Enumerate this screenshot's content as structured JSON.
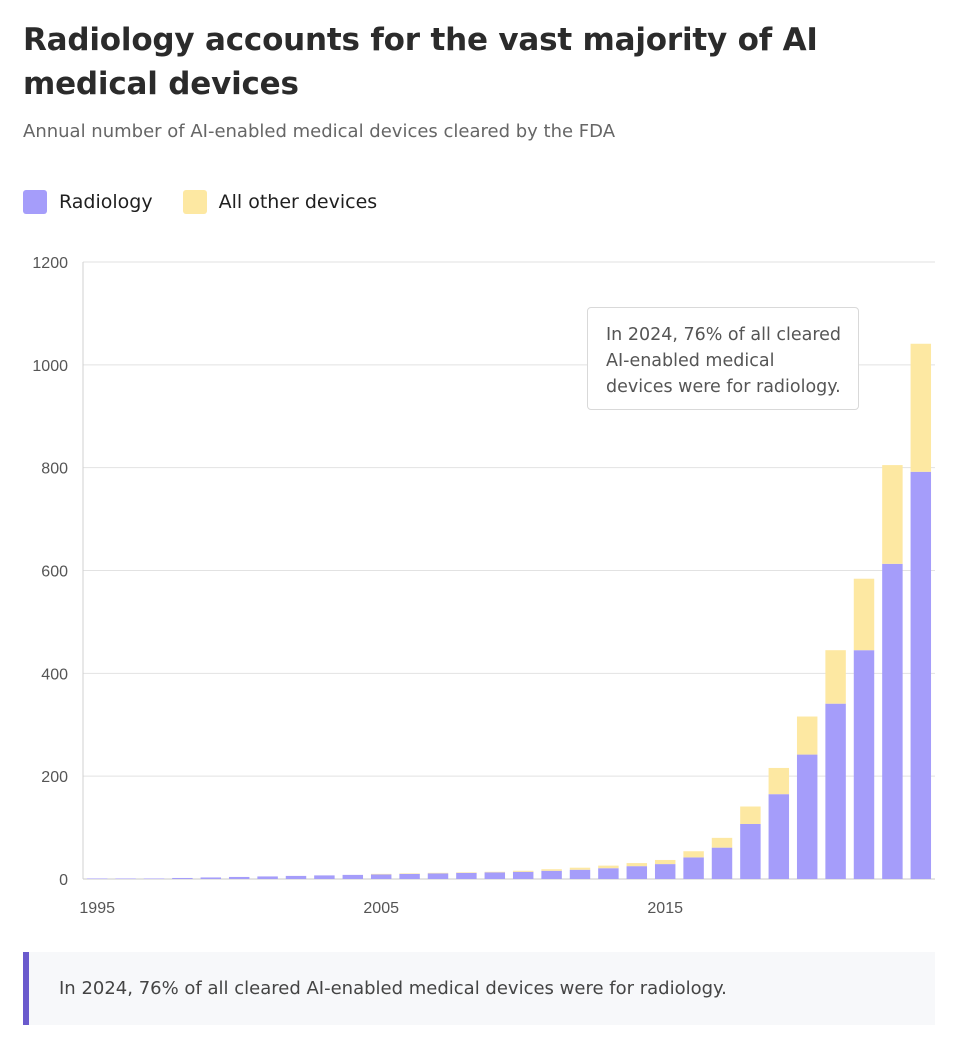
{
  "title": "Radiology accounts for the vast majority of AI medical devices",
  "subtitle": "Annual number of AI-enabled medical devices cleared by the FDA",
  "legend": {
    "radiology_label": "Radiology",
    "other_label": "All other devices"
  },
  "colors": {
    "radiology": "#a59dfa",
    "other": "#fde8a2",
    "grid": "#e2e2e2",
    "axis_text": "#555555",
    "accent": "#6a5acd"
  },
  "annotation": "In 2024, 76% of all cleared AI-enabled medical devices were for radiology.",
  "footnote": "In 2024, 76% of all cleared AI-enabled medical devices were for radiology.",
  "chart_data": {
    "type": "bar",
    "stacked": true,
    "title": "Radiology accounts for the vast majority of AI medical devices",
    "subtitle": "Annual number of AI-enabled medical devices cleared by the FDA",
    "xlabel": "",
    "ylabel": "",
    "ylim": [
      0,
      1200
    ],
    "yticks": [
      0,
      200,
      400,
      600,
      800,
      1000,
      1200
    ],
    "xticks": [
      1995,
      2005,
      2015
    ],
    "grid": true,
    "legend_position": "top-left",
    "categories": [
      1995,
      1996,
      1997,
      1998,
      1999,
      2000,
      2001,
      2002,
      2003,
      2004,
      2005,
      2006,
      2007,
      2008,
      2009,
      2010,
      2011,
      2012,
      2013,
      2014,
      2015,
      2016,
      2017,
      2018,
      2019,
      2020,
      2021,
      2022,
      2023,
      2024
    ],
    "series": [
      {
        "name": "Radiology",
        "values": [
          1,
          1,
          1,
          2,
          3,
          4,
          5,
          6,
          7,
          8,
          9,
          10,
          11,
          12,
          13,
          14,
          16,
          18,
          21,
          25,
          29,
          42,
          61,
          107,
          165,
          242,
          341,
          445,
          613,
          792
        ]
      },
      {
        "name": "All other devices",
        "values": [
          0,
          0,
          0,
          0,
          0,
          0,
          0,
          0,
          0,
          0,
          1,
          1,
          1,
          1,
          1,
          2,
          3,
          4,
          5,
          6,
          8,
          12,
          19,
          34,
          51,
          74,
          104,
          139,
          192,
          249
        ]
      }
    ]
  }
}
